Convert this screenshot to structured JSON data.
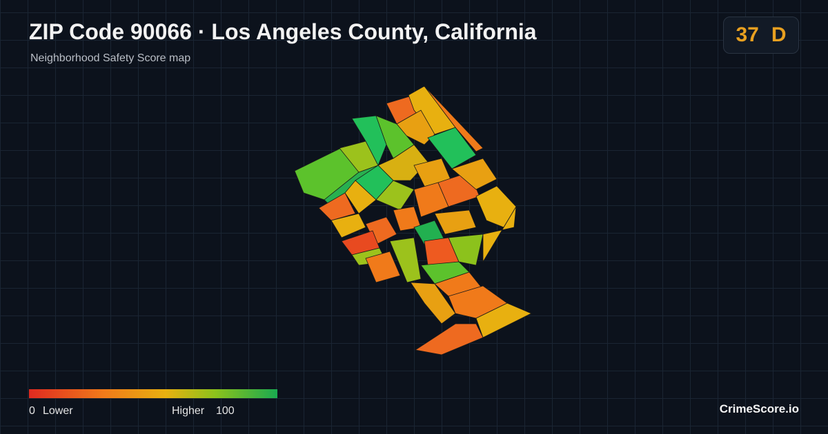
{
  "header": {
    "title": "ZIP Code 90066 · Los Angeles County, California",
    "subtitle": "Neighborhood Safety Score map"
  },
  "score": {
    "value": "37",
    "grade": "D"
  },
  "legend": {
    "min": 0,
    "min_label": "Lower",
    "max_label": "Higher",
    "max": 100
  },
  "brand": "CrimeScore.io"
}
